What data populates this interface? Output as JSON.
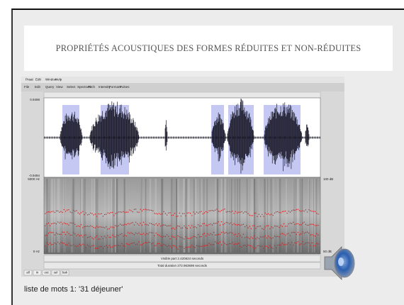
{
  "slide": {
    "title": "PROPRIÉTÉS ACOUSTIQUES DES FORMES RÉDUITES ET NON-RÉDUITES",
    "caption": "liste de mots 1: '31 déjeuner'"
  },
  "praat": {
    "menu": [
      "Praat",
      "Edit",
      "Window",
      "Help"
    ],
    "toolbar": [
      "File",
      "Edit",
      "Query",
      "View",
      "Select",
      "Spectrum",
      "Pitch",
      "Intensity",
      "Formant",
      "Pulses"
    ],
    "waveform_max": "0.9498",
    "waveform_min": "-0.9494",
    "freq_top": "5000 Hz",
    "freq_bottom": "0 Hz",
    "db_top": "100 dB",
    "db_bottom": "50 dB",
    "visible_part": "Visible part 2.420624 seconds",
    "total_duration": "Total duration 272.963698 seconds",
    "buttons": [
      "all",
      "in",
      "out",
      "sel",
      "bak"
    ]
  }
}
